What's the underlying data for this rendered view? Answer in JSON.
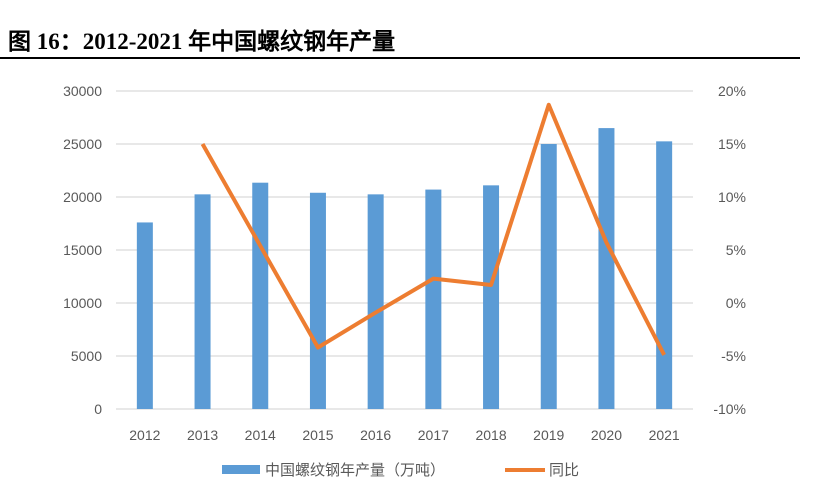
{
  "title": "图 16：2012-2021 年中国螺纹钢年产量",
  "chart_data": {
    "type": "bar+line",
    "title": "",
    "categories": [
      "2012",
      "2013",
      "2014",
      "2015",
      "2016",
      "2017",
      "2018",
      "2019",
      "2020",
      "2021"
    ],
    "series": [
      {
        "name": "中国螺纹钢年产量（万吨）",
        "type": "bar",
        "axis": "left",
        "color": "#5b9bd5",
        "values": [
          17600,
          20250,
          21350,
          20400,
          20250,
          20700,
          21100,
          25000,
          26500,
          25250
        ]
      },
      {
        "name": "同比",
        "type": "line",
        "axis": "right",
        "color": "#ed7d31",
        "values": [
          null,
          15.0,
          5.4,
          -4.2,
          -0.9,
          2.3,
          1.7,
          18.7,
          5.7,
          -4.9
        ]
      }
    ],
    "left_axis": {
      "ylim": [
        0,
        30000
      ],
      "ticks": [
        "0",
        "5000",
        "10000",
        "15000",
        "20000",
        "25000",
        "30000"
      ]
    },
    "right_axis": {
      "ylim": [
        -10,
        20
      ],
      "ticks": [
        "-10%",
        "-5%",
        "0%",
        "5%",
        "10%",
        "15%",
        "20%"
      ]
    },
    "grid": true,
    "legend": "bottom"
  }
}
